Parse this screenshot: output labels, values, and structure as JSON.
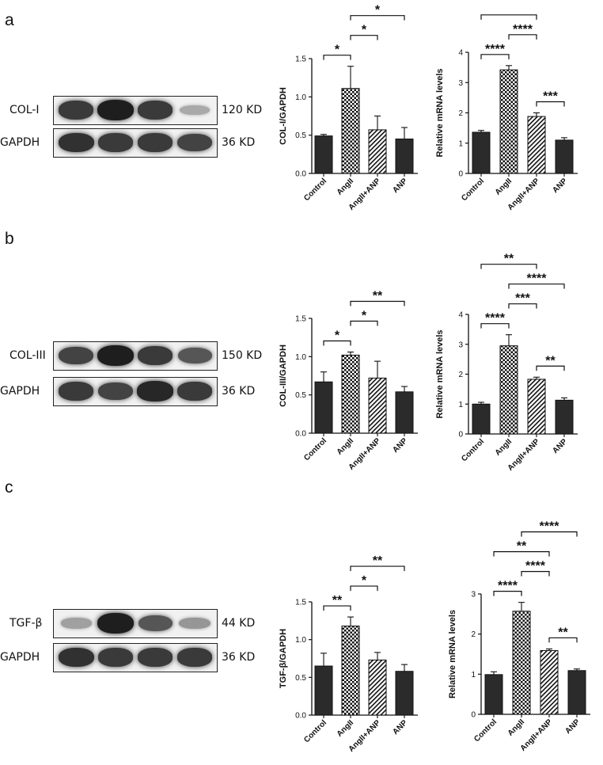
{
  "panels": [
    {
      "letter": "a",
      "blot": {
        "target_label": "COL-I",
        "target_kd": "120 KD",
        "ref_label": "GAPDH",
        "ref_kd": "36 KD",
        "target_band_intensity": [
          0.85,
          1.0,
          0.85,
          0.25
        ],
        "ref_band_intensity": [
          0.9,
          0.85,
          0.85,
          0.8
        ]
      }
    },
    {
      "letter": "b",
      "blot": {
        "target_label": "COL-III",
        "target_kd": "150 KD",
        "ref_label": "GAPDH",
        "ref_kd": "36 KD",
        "target_band_intensity": [
          0.8,
          1.0,
          0.85,
          0.7
        ],
        "ref_band_intensity": [
          0.85,
          0.8,
          0.95,
          0.85
        ]
      }
    },
    {
      "letter": "c",
      "blot": {
        "target_label": "TGF-β",
        "target_kd": "44 KD",
        "ref_label": "GAPDH",
        "ref_kd": "36 KD",
        "target_band_intensity": [
          0.3,
          1.0,
          0.7,
          0.35
        ],
        "ref_band_intensity": [
          0.9,
          0.85,
          0.85,
          0.85
        ]
      }
    }
  ],
  "chart_data": [
    {
      "type": "bar",
      "panel": "a",
      "categories": [
        "Control",
        "AngII",
        "AngII+ANP",
        "ANP"
      ],
      "values": [
        0.49,
        1.11,
        0.57,
        0.45
      ],
      "errors": [
        0.02,
        0.29,
        0.18,
        0.15
      ],
      "ylabel": "COL-I/GAPDH",
      "ylim": [
        0,
        1.5
      ],
      "yticks": [
        "0.0",
        "0.5",
        "1.0",
        "1.5"
      ],
      "ytick_values": [
        0,
        0.5,
        1.0,
        1.5
      ],
      "significance": [
        {
          "from": 0,
          "to": 1,
          "label": "*"
        },
        {
          "from": 1,
          "to": 2,
          "label": "*"
        },
        {
          "from": 1,
          "to": 3,
          "label": "*"
        }
      ]
    },
    {
      "type": "bar",
      "panel": "a",
      "categories": [
        "Control",
        "AngII",
        "AngII+ANP",
        "ANP"
      ],
      "values": [
        1.36,
        3.42,
        1.88,
        1.1
      ],
      "errors": [
        0.06,
        0.14,
        0.12,
        0.08
      ],
      "ylabel": "Relative mRNA levels",
      "ylim": [
        0,
        4
      ],
      "yticks": [
        "0",
        "1",
        "2",
        "3",
        "4"
      ],
      "ytick_values": [
        0,
        1,
        2,
        3,
        4
      ],
      "significance": [
        {
          "from": 0,
          "to": 1,
          "label": "****"
        },
        {
          "from": 2,
          "to": 3,
          "label": "***"
        },
        {
          "from": 1,
          "to": 2,
          "label": "****"
        },
        {
          "from": 0,
          "to": 2,
          "label": ""
        }
      ]
    },
    {
      "type": "bar",
      "panel": "b",
      "categories": [
        "Control",
        "AngII",
        "AngII+ANP",
        "ANP"
      ],
      "values": [
        0.67,
        1.02,
        0.72,
        0.54
      ],
      "errors": [
        0.13,
        0.04,
        0.22,
        0.07
      ],
      "ylabel": "COL-III/GAPDH",
      "ylim": [
        0,
        1.5
      ],
      "yticks": [
        "0.0",
        "0.5",
        "1.0",
        "1.5"
      ],
      "ytick_values": [
        0,
        0.5,
        1.0,
        1.5
      ],
      "significance": [
        {
          "from": 0,
          "to": 1,
          "label": "*"
        },
        {
          "from": 1,
          "to": 2,
          "label": "*"
        },
        {
          "from": 1,
          "to": 3,
          "label": "**"
        }
      ]
    },
    {
      "type": "bar",
      "panel": "b",
      "categories": [
        "Control",
        "AngII",
        "AngII+ANP",
        "ANP"
      ],
      "values": [
        1.0,
        2.95,
        1.83,
        1.13
      ],
      "errors": [
        0.06,
        0.37,
        0.07,
        0.08
      ],
      "ylabel": "Relative mRNA levels",
      "ylim": [
        0,
        4
      ],
      "yticks": [
        "0",
        "1",
        "2",
        "3",
        "4"
      ],
      "ytick_values": [
        0,
        1,
        2,
        3,
        4
      ],
      "significance": [
        {
          "from": 0,
          "to": 1,
          "label": "****"
        },
        {
          "from": 2,
          "to": 3,
          "label": "**"
        },
        {
          "from": 1,
          "to": 2,
          "label": "***"
        },
        {
          "from": 1,
          "to": 3,
          "label": "****"
        },
        {
          "from": 0,
          "to": 2,
          "label": "**"
        }
      ]
    },
    {
      "type": "bar",
      "panel": "c",
      "categories": [
        "Control",
        "AngII",
        "AngII+ANP",
        "ANP"
      ],
      "values": [
        0.65,
        1.18,
        0.73,
        0.58
      ],
      "errors": [
        0.17,
        0.12,
        0.1,
        0.09
      ],
      "ylabel": "TGF-β/GAPDH",
      "ylim": [
        0,
        1.5
      ],
      "yticks": [
        "0.0",
        "0.5",
        "1.0",
        "1.5"
      ],
      "ytick_values": [
        0,
        0.5,
        1.0,
        1.5
      ],
      "significance": [
        {
          "from": 0,
          "to": 1,
          "label": "**"
        },
        {
          "from": 1,
          "to": 2,
          "label": "*"
        },
        {
          "from": 1,
          "to": 3,
          "label": "**"
        }
      ]
    },
    {
      "type": "bar",
      "panel": "c",
      "categories": [
        "Control",
        "AngII",
        "AngII+ANP",
        "ANP"
      ],
      "values": [
        0.99,
        2.57,
        1.59,
        1.09
      ],
      "errors": [
        0.07,
        0.22,
        0.04,
        0.04
      ],
      "ylabel": "Relative mRNA levels",
      "ylim": [
        0,
        3
      ],
      "yticks": [
        "0",
        "1",
        "2",
        "3"
      ],
      "ytick_values": [
        0,
        1,
        2,
        3
      ],
      "significance": [
        {
          "from": 0,
          "to": 1,
          "label": "****"
        },
        {
          "from": 2,
          "to": 3,
          "label": "**"
        },
        {
          "from": 1,
          "to": 2,
          "label": "****"
        },
        {
          "from": 0,
          "to": 2,
          "label": "**"
        },
        {
          "from": 1,
          "to": 3,
          "label": "****"
        }
      ]
    }
  ]
}
